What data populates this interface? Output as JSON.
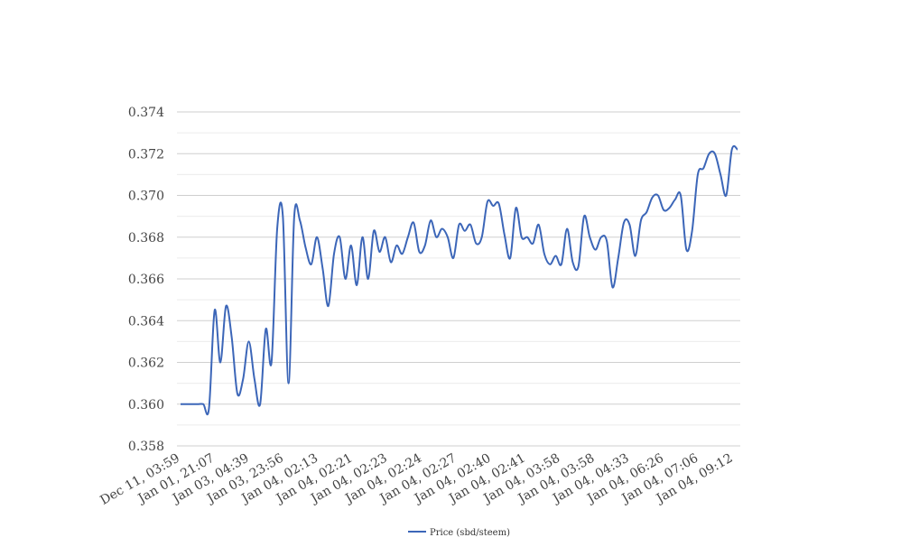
{
  "chart_data": {
    "type": "line",
    "title": "",
    "xlabel": "",
    "ylabel": "",
    "ylim": [
      0.358,
      0.374
    ],
    "y_ticks": [
      "0.358",
      "0.360",
      "0.362",
      "0.364",
      "0.366",
      "0.368",
      "0.370",
      "0.372",
      "0.374"
    ],
    "x_tick_labels": [
      "Dec 11, 03:59",
      "Jan 01, 21:07",
      "Jan 03, 04:39",
      "Jan 03, 23:56",
      "Jan 04, 02:13",
      "Jan 04, 02:21",
      "Jan 04, 02:23",
      "Jan 04, 02:24",
      "Jan 04, 02:27",
      "Jan 04, 02:40",
      "Jan 04, 02:41",
      "Jan 04, 03:58",
      "Jan 04, 03:58",
      "Jan 04, 04:33",
      "Jan 04, 06:26",
      "Jan 04, 07:06",
      "Jan 04, 09:12"
    ],
    "grid": true,
    "legend_position": "bottom",
    "series": [
      {
        "name": "Price (sbd/steem)",
        "color": "#3c66b8",
        "values": [
          0.36,
          0.36,
          0.36,
          0.36,
          0.36,
          0.3598,
          0.3645,
          0.362,
          0.3647,
          0.3632,
          0.3605,
          0.3612,
          0.363,
          0.3612,
          0.36,
          0.3636,
          0.362,
          0.3684,
          0.369,
          0.361,
          0.369,
          0.3688,
          0.3675,
          0.3667,
          0.368,
          0.3665,
          0.3647,
          0.3672,
          0.368,
          0.366,
          0.3676,
          0.3657,
          0.368,
          0.366,
          0.3683,
          0.3673,
          0.368,
          0.3668,
          0.3676,
          0.3672,
          0.368,
          0.3687,
          0.3673,
          0.3676,
          0.3688,
          0.368,
          0.3684,
          0.368,
          0.367,
          0.3686,
          0.3683,
          0.3686,
          0.3677,
          0.368,
          0.3697,
          0.3695,
          0.3696,
          0.3681,
          0.367,
          0.3694,
          0.368,
          0.368,
          0.3677,
          0.3686,
          0.3672,
          0.3667,
          0.3671,
          0.3667,
          0.3684,
          0.3668,
          0.3666,
          0.369,
          0.368,
          0.3674,
          0.368,
          0.3678,
          0.3656,
          0.367,
          0.3687,
          0.3686,
          0.3671,
          0.3688,
          0.3692,
          0.3699,
          0.37,
          0.3693,
          0.3694,
          0.3698,
          0.37,
          0.3674,
          0.3683,
          0.371,
          0.3713,
          0.372,
          0.372,
          0.371,
          0.37,
          0.3722,
          0.3722
        ]
      }
    ]
  }
}
